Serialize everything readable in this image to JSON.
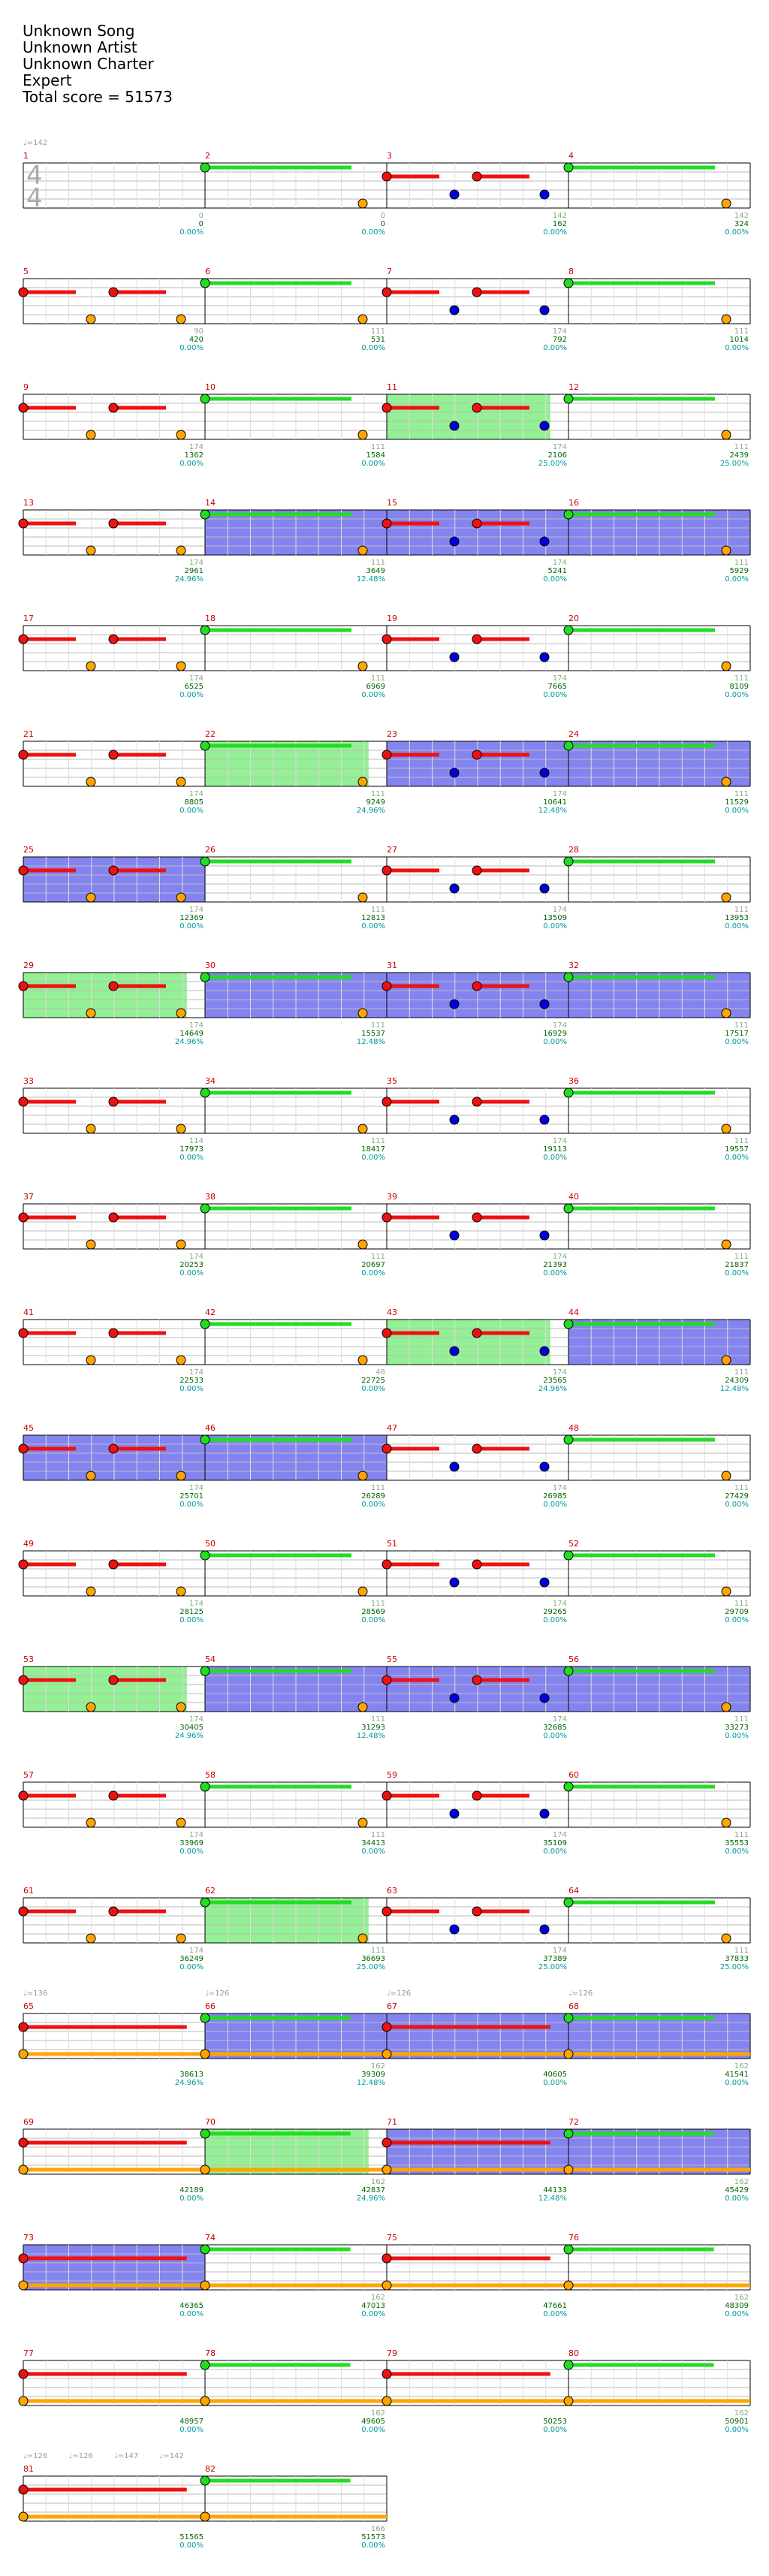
{
  "header": {
    "song": "Unknown Song",
    "artist": "Unknown Artist",
    "charter": "Unknown Charter",
    "difficulty": "Expert",
    "total_score": "Total score = 51573"
  },
  "time_signature": {
    "top": "4",
    "bottom": "4"
  },
  "colors": {
    "green": "#22dd22",
    "red": "#ee1111",
    "yellow": "#eedd00",
    "blue": "#0000dd",
    "orange": "#ffa500",
    "purple": "#880088",
    "olive": "#997700",
    "sp_green": "#88ee88",
    "sp_blue": "#7777ee",
    "measure_num": "#cc0000",
    "count_color": "#88aa88",
    "score_color": "#006600",
    "pct_color": "#009999",
    "tempo_color": "#999999"
  },
  "tempo_marks": [
    {
      "measure": 1,
      "beat": 0,
      "label": "♩=142"
    },
    {
      "measure": 65,
      "beat": 0,
      "label": "♩=136"
    },
    {
      "measure": 66,
      "beat": 0,
      "label": "♩=126"
    },
    {
      "measure": 67,
      "beat": 0,
      "label": "♩=126"
    },
    {
      "measure": 68,
      "beat": 0,
      "label": "♩=126"
    },
    {
      "measure": 81,
      "beat": 0,
      "label": "♩=126"
    },
    {
      "measure": 81,
      "beat": 1,
      "label": "♩=126"
    },
    {
      "measure": 81,
      "beat": 2,
      "label": "♩=147"
    },
    {
      "measure": 81,
      "beat": 3,
      "label": "♩=142"
    }
  ],
  "measures": [
    {
      "n": 1,
      "count": "0",
      "score": "0",
      "pct": "0.00%"
    },
    {
      "n": 2,
      "count": "0",
      "score": "0",
      "pct": "0.00%"
    },
    {
      "n": 3,
      "count": "142",
      "score": "162",
      "pct": "0.00%"
    },
    {
      "n": 4,
      "count": "142",
      "score": "324",
      "pct": "0.00%"
    },
    {
      "n": 5,
      "count": "90",
      "score": "420",
      "pct": "0.00%"
    },
    {
      "n": 6,
      "count": "111",
      "score": "531",
      "pct": "0.00%"
    },
    {
      "n": 7,
      "count": "174",
      "score": "792",
      "pct": "0.00%"
    },
    {
      "n": 8,
      "count": "111",
      "score": "1014",
      "pct": "0.00%"
    },
    {
      "n": 9,
      "count": "174",
      "score": "1362",
      "pct": "0.00%"
    },
    {
      "n": 10,
      "count": "111",
      "score": "1584",
      "pct": "0.00%"
    },
    {
      "n": 11,
      "count": "174",
      "score": "2106",
      "pct": "25.00%"
    },
    {
      "n": 12,
      "count": "111",
      "score": "2439",
      "pct": "25.00%"
    },
    {
      "n": 13,
      "count": "174",
      "score": "2961",
      "pct": "24.96%"
    },
    {
      "n": 14,
      "count": "111",
      "score": "3649",
      "pct": "12.48%"
    },
    {
      "n": 15,
      "count": "174",
      "score": "5241",
      "pct": "0.00%"
    },
    {
      "n": 16,
      "count": "111",
      "score": "5929",
      "pct": "0.00%"
    },
    {
      "n": 17,
      "count": "174",
      "score": "6525",
      "pct": "0.00%"
    },
    {
      "n": 18,
      "count": "111",
      "score": "6969",
      "pct": "0.00%"
    },
    {
      "n": 19,
      "count": "174",
      "score": "7665",
      "pct": "0.00%"
    },
    {
      "n": 20,
      "count": "111",
      "score": "8109",
      "pct": "0.00%"
    },
    {
      "n": 21,
      "count": "174",
      "score": "8805",
      "pct": "0.00%"
    },
    {
      "n": 22,
      "count": "111",
      "score": "9249",
      "pct": "24.96%"
    },
    {
      "n": 23,
      "count": "174",
      "score": "10641",
      "pct": "12.48%"
    },
    {
      "n": 24,
      "count": "111",
      "score": "11529",
      "pct": "0.00%"
    },
    {
      "n": 25,
      "count": "174",
      "score": "12369",
      "pct": "0.00%"
    },
    {
      "n": 26,
      "count": "111",
      "score": "12813",
      "pct": "0.00%"
    },
    {
      "n": 27,
      "count": "174",
      "score": "13509",
      "pct": "0.00%"
    },
    {
      "n": 28,
      "count": "111",
      "score": "13953",
      "pct": "0.00%"
    },
    {
      "n": 29,
      "count": "174",
      "score": "14649",
      "pct": "24.96%"
    },
    {
      "n": 30,
      "count": "111",
      "score": "15537",
      "pct": "12.48%"
    },
    {
      "n": 31,
      "count": "174",
      "score": "16929",
      "pct": "0.00%"
    },
    {
      "n": 32,
      "count": "111",
      "score": "17517",
      "pct": "0.00%"
    },
    {
      "n": 33,
      "count": "114",
      "score": "17973",
      "pct": "0.00%"
    },
    {
      "n": 34,
      "count": "111",
      "score": "18417",
      "pct": "0.00%"
    },
    {
      "n": 35,
      "count": "174",
      "score": "19113",
      "pct": "0.00%"
    },
    {
      "n": 36,
      "count": "111",
      "score": "19557",
      "pct": "0.00%"
    },
    {
      "n": 37,
      "count": "174",
      "score": "20253",
      "pct": "0.00%"
    },
    {
      "n": 38,
      "count": "111",
      "score": "20697",
      "pct": "0.00%"
    },
    {
      "n": 39,
      "count": "174",
      "score": "21393",
      "pct": "0.00%"
    },
    {
      "n": 40,
      "count": "111",
      "score": "21837",
      "pct": "0.00%"
    },
    {
      "n": 41,
      "count": "174",
      "score": "22533",
      "pct": "0.00%"
    },
    {
      "n": 42,
      "count": "48",
      "score": "22725",
      "pct": "0.00%"
    },
    {
      "n": 43,
      "count": "174",
      "score": "23565",
      "pct": "24.96%"
    },
    {
      "n": 44,
      "count": "111",
      "score": "24309",
      "pct": "12.48%"
    },
    {
      "n": 45,
      "count": "174",
      "score": "25701",
      "pct": "0.00%"
    },
    {
      "n": 46,
      "count": "111",
      "score": "26289",
      "pct": "0.00%"
    },
    {
      "n": 47,
      "count": "174",
      "score": "26985",
      "pct": "0.00%"
    },
    {
      "n": 48,
      "count": "111",
      "score": "27429",
      "pct": "0.00%"
    },
    {
      "n": 49,
      "count": "174",
      "score": "28125",
      "pct": "0.00%"
    },
    {
      "n": 50,
      "count": "111",
      "score": "28569",
      "pct": "0.00%"
    },
    {
      "n": 51,
      "count": "174",
      "score": "29265",
      "pct": "0.00%"
    },
    {
      "n": 52,
      "count": "111",
      "score": "29709",
      "pct": "0.00%"
    },
    {
      "n": 53,
      "count": "174",
      "score": "30405",
      "pct": "24.96%"
    },
    {
      "n": 54,
      "count": "111",
      "score": "31293",
      "pct": "12.48%"
    },
    {
      "n": 55,
      "count": "174",
      "score": "32685",
      "pct": "0.00%"
    },
    {
      "n": 56,
      "count": "111",
      "score": "33273",
      "pct": "0.00%"
    },
    {
      "n": 57,
      "count": "174",
      "score": "33969",
      "pct": "0.00%"
    },
    {
      "n": 58,
      "count": "111",
      "score": "34413",
      "pct": "0.00%"
    },
    {
      "n": 59,
      "count": "174",
      "score": "35109",
      "pct": "0.00%"
    },
    {
      "n": 60,
      "count": "111",
      "score": "35553",
      "pct": "0.00%"
    },
    {
      "n": 61,
      "count": "174",
      "score": "36249",
      "pct": "0.00%"
    },
    {
      "n": 62,
      "count": "111",
      "score": "36693",
      "pct": "25.00%"
    },
    {
      "n": 63,
      "count": "174",
      "score": "37389",
      "pct": "25.00%"
    },
    {
      "n": 64,
      "count": "111",
      "score": "37833",
      "pct": "25.00%"
    },
    {
      "n": 65,
      "count": "",
      "score": "38613",
      "pct": "24.96%"
    },
    {
      "n": 66,
      "count": "162",
      "score": "39309",
      "pct": "12.48%"
    },
    {
      "n": 67,
      "count": "",
      "score": "40605",
      "pct": "0.00%"
    },
    {
      "n": 68,
      "count": "162",
      "score": "41541",
      "pct": "0.00%"
    },
    {
      "n": 69,
      "count": "",
      "score": "42189",
      "pct": "0.00%"
    },
    {
      "n": 70,
      "count": "162",
      "score": "42837",
      "pct": "24.96%"
    },
    {
      "n": 71,
      "count": "",
      "score": "44133",
      "pct": "12.48%"
    },
    {
      "n": 72,
      "count": "162",
      "score": "45429",
      "pct": "0.00%"
    },
    {
      "n": 73,
      "count": "",
      "score": "46365",
      "pct": "0.00%"
    },
    {
      "n": 74,
      "count": "162",
      "score": "47013",
      "pct": "0.00%"
    },
    {
      "n": 75,
      "count": "",
      "score": "47661",
      "pct": "0.00%"
    },
    {
      "n": 76,
      "count": "162",
      "score": "48309",
      "pct": "0.00%"
    },
    {
      "n": 77,
      "count": "",
      "score": "48957",
      "pct": "0.00%"
    },
    {
      "n": 78,
      "count": "162",
      "score": "49605",
      "pct": "0.00%"
    },
    {
      "n": 79,
      "count": "",
      "score": "50253",
      "pct": "0.00%"
    },
    {
      "n": 80,
      "count": "162",
      "score": "50901",
      "pct": "0.00%"
    },
    {
      "n": 81,
      "count": "",
      "score": "51565",
      "pct": "0.00%"
    },
    {
      "n": 82,
      "count": "166",
      "score": "51573",
      "pct": "0.00%"
    }
  ]
}
